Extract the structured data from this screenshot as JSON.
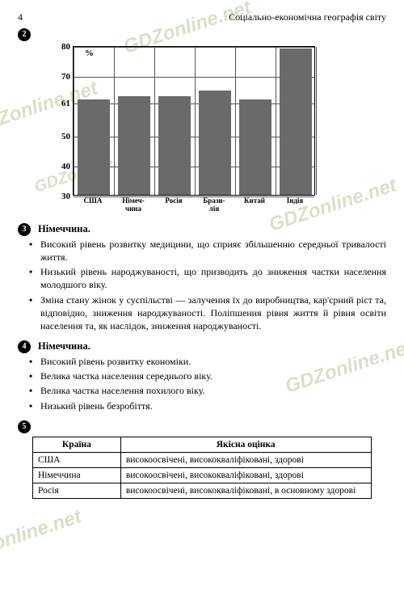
{
  "header": {
    "page_num": "4",
    "title": "Соціально-економічна географія світу"
  },
  "watermark_text": "GDZonline.net",
  "bullets": {
    "b2": "2",
    "b3": "3",
    "b4": "4",
    "b5": "5"
  },
  "chart": {
    "y_min": 30,
    "y_max": 80,
    "y_ticks": [
      30,
      40,
      50,
      61,
      70,
      80
    ],
    "pct_symbol": "%",
    "categories": [
      "США",
      "Німеч-\nчина",
      "Росія",
      "Брази-\nлія",
      "Китай",
      "Індія"
    ],
    "values": [
      62,
      63,
      63,
      65,
      62,
      79
    ],
    "bar_color": "#6a6a6a",
    "grid_color": "#555555"
  },
  "sec3": {
    "title": "Німеччина.",
    "items": [
      "Високий рівень розвитку медицини, що сприяє збільшенню середньої тривалості життя.",
      "Низький рівень народжуваності, що призводить до зниження частки населення молодшого віку.",
      "Зміна стану жінок у суспільстві — залучення їх до виробництва, кар'єрний ріст та, відповідно, зниження народжуваності. Поліпшення рівня життя й рівня освіти населення та, як наслідок, зниження народжуваності."
    ]
  },
  "sec4": {
    "title": "Німеччина.",
    "items": [
      "Високий рівень розвитку економіки.",
      "Велика частка населення середнього віку.",
      "Велика частка населення похилого віку.",
      "Низький рівень безробіття."
    ]
  },
  "table5": {
    "headers": [
      "Країна",
      "Якісна оцінка"
    ],
    "rows": [
      [
        "США",
        "високоосвічені, висококваліфіковані, здорові"
      ],
      [
        "Німеччина",
        "високоосвічені, висококваліфіковані, здорові"
      ],
      [
        "Росія",
        "високоосвічені, висококваліфіковані, в основному здорові"
      ]
    ]
  }
}
